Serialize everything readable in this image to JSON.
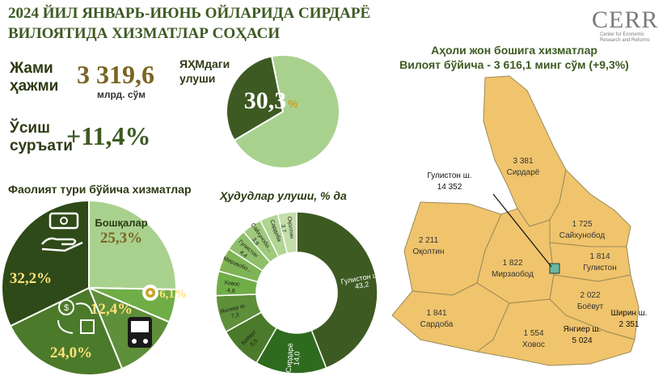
{
  "header": {
    "title_line1": "2024 ЙИЛ ЯНВАРЬ-ИЮНЬ ОЙЛАРИДА СИРДАРЁ",
    "title_line2": "ВИЛОЯТИДА ХИЗМАТЛАР СОҲАСИ",
    "logo_text": "CERR",
    "logo_subtitle": "Center for Economic Research and Reforms"
  },
  "kpi": {
    "total_label_1": "Жами",
    "total_label_2": "ҳажми",
    "total_value": "3 319,6",
    "total_unit": "млрд. сўм",
    "growth_label_1": "Ўсиш",
    "growth_label_2": "суръати",
    "growth_value": "+11,4%",
    "grp_share_label_1": "ЯҲМдаги",
    "grp_share_label_2": "улуши",
    "grp_share_value": "30,3",
    "grp_share_pct": "%"
  },
  "sections": {
    "activity_title": "Фаолият тури бўйича хизматлар",
    "districts_title": "Ҳудудлар улуши, % да",
    "map_title_1": "Аҳоли жон бошига хизматлар",
    "map_title_2": "Вилоят бўйича - 3 616,1 минг сўм (+9,3%)"
  },
  "chart_data": [
    {
      "type": "pie",
      "title": "ЯҲМдаги улуши",
      "values": [
        30.3,
        69.7
      ],
      "labels": [
        "30,3%",
        ""
      ],
      "colors": [
        "#3d5a22",
        "#a9d18e"
      ]
    },
    {
      "type": "pie",
      "title": "Фаолият тури бўйича хизматлар",
      "categories": [
        "Бошқалар",
        "",
        "",
        "",
        ""
      ],
      "values": [
        25.3,
        6.1,
        12.4,
        24.0,
        32.2
      ],
      "labels": [
        "25,3%",
        "6,1%",
        "12,4%",
        "24,0%",
        "32,2%"
      ],
      "icons": [
        "",
        "gear-icon",
        "bus-icon",
        "exchange-icon",
        "money-hand-icon"
      ],
      "colors": [
        "#a9d18e",
        "#70ad47",
        "#5e8f3a",
        "#4b7a2a",
        "#2e4a18"
      ]
    },
    {
      "type": "pie",
      "title": "Ҳудудлар улуши, % да",
      "categories": [
        "Гулистон ш.",
        "Сирдарё",
        "Боёвут",
        "Янгиер ш.",
        "Ховос",
        "Мирзаобо...",
        "Гулистон",
        "Сайхунобо...",
        "Сардоба",
        "Оқолтин"
      ],
      "values": [
        43.2,
        14.0,
        8.5,
        7.3,
        4.8,
        4.7,
        4.4,
        3.9,
        3.6,
        3.7
      ],
      "value_labels": [
        "43,2",
        "14,0",
        "8,5",
        "7,3",
        "4,8",
        "",
        "4,4",
        "3,9",
        "",
        "3,7"
      ],
      "colors": [
        "#3d5a22",
        "#2e6b1e",
        "#4b7a2a",
        "#5e8f3a",
        "#70ad47",
        "#7fb456",
        "#8fbf6a",
        "#9fca7c",
        "#b0d491",
        "#c3dea8"
      ]
    }
  ],
  "map": {
    "regions": [
      {
        "name": "Сирдарё",
        "value": "3 381"
      },
      {
        "name": "Сайхунобод",
        "value": "1 725"
      },
      {
        "name": "Оқолтин",
        "value": "2 211"
      },
      {
        "name": "Мирзаобод",
        "value": "1 822"
      },
      {
        "name": "Гулистон",
        "value": "1 814"
      },
      {
        "name": "Боёвут",
        "value": "2 022"
      },
      {
        "name": "Сардоба",
        "value": "1 841"
      },
      {
        "name": "Ховос",
        "value": "1 554"
      }
    ],
    "callouts": [
      {
        "name": "Гулистон ш.",
        "value": "14 352"
      },
      {
        "name": "Ширин ш.",
        "value": "2 351"
      },
      {
        "name": "Янгиер ш.",
        "value": "5 024"
      }
    ]
  }
}
